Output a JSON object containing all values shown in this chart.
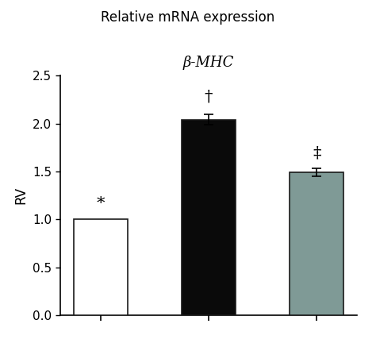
{
  "title": "Relative mRNA expression",
  "subtitle": "β-MHC",
  "ylabel": "RV",
  "bar_values": [
    1.0,
    2.04,
    1.49
  ],
  "bar_errors": [
    0.0,
    0.055,
    0.04
  ],
  "bar_colors": [
    "#ffffff",
    "#0a0a0a",
    "#7f9a96"
  ],
  "bar_edge_colors": [
    "#1a1a1a",
    "#1a1a1a",
    "#1a1a1a"
  ],
  "annotations": [
    "*",
    "†",
    "‡"
  ],
  "annotation_fontsize": 15,
  "ylim": [
    0.0,
    2.5
  ],
  "yticks": [
    0.0,
    0.5,
    1.0,
    1.5,
    2.0,
    2.5
  ],
  "bar_width": 0.5,
  "bar_positions": [
    0,
    1,
    2
  ],
  "title_fontsize": 12,
  "subtitle_fontsize": 13,
  "ylabel_fontsize": 12,
  "tick_fontsize": 11,
  "background_color": "#ffffff",
  "edge_linewidth": 1.2,
  "annot_offsets": [
    0.09,
    0.1,
    0.08
  ]
}
